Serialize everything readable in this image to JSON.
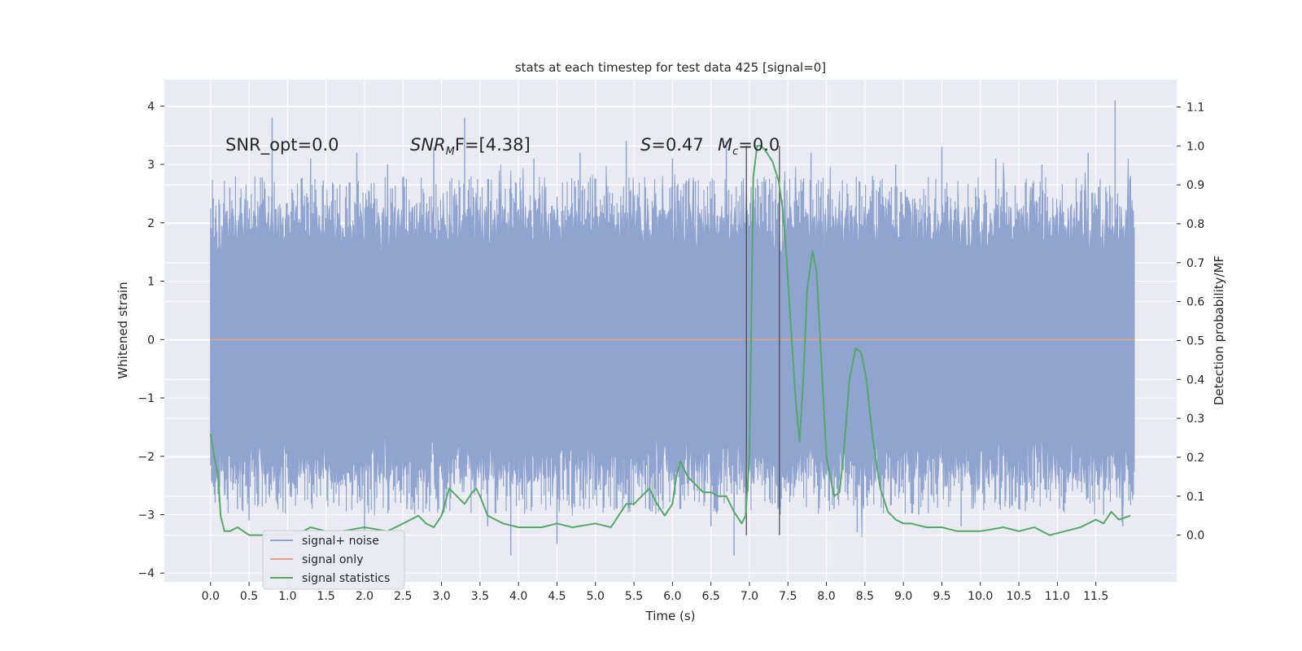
{
  "chart_data": {
    "type": "line",
    "title": "stats at each timestep for test data 425 [signal=0]",
    "xlabel": "Time (s)",
    "ylabel": "Whitened strain",
    "y2label": "Detection probability/MF",
    "xlim": [
      -0.6,
      12.55
    ],
    "ylim": [
      -4.15,
      4.45
    ],
    "y2lim": [
      -0.12,
      1.17
    ],
    "xticks": [
      "0.0",
      "0.5",
      "1.0",
      "1.5",
      "2.0",
      "2.5",
      "3.0",
      "3.5",
      "4.0",
      "4.5",
      "5.0",
      "5.5",
      "6.0",
      "6.5",
      "7.0",
      "7.5",
      "8.0",
      "8.5",
      "9.0",
      "9.5",
      "10.0",
      "10.5",
      "11.0",
      "11.5"
    ],
    "yticks": [
      "4",
      "3",
      "2",
      "1",
      "0",
      "−1",
      "−2",
      "−3",
      "−4"
    ],
    "y2ticks": [
      "1.1",
      "1.0",
      "0.9",
      "0.8",
      "0.7",
      "0.6",
      "0.5",
      "0.4",
      "0.3",
      "0.2",
      "0.1",
      "0.0"
    ],
    "grid": true,
    "legend_position": "lower-left",
    "annotations": {
      "snr_opt": "SNR_opt=0.0",
      "snr_mf_prefix": "SNR",
      "snr_mf_sub": "M",
      "snr_mf_rest": "F=[4.38]",
      "s_sym": "S",
      "s_val": "=0.47",
      "mc_sym": "M",
      "mc_sub": "c",
      "mc_val": "=0.0"
    },
    "vlines_x": [
      6.96,
      7.39
    ],
    "series": [
      {
        "name": "signal+ noise",
        "axis": "left",
        "color": "#8fa5cf",
        "x_range": [
          0.0,
          12.0
        ],
        "band_low": -1.6,
        "band_high": 1.4,
        "spike_peaks": [
          [
            0.1,
            -2.4
          ],
          [
            0.25,
            2.6
          ],
          [
            0.35,
            -2.9
          ],
          [
            0.5,
            -3.1
          ],
          [
            0.8,
            3.8
          ],
          [
            1.05,
            -2.7
          ],
          [
            1.3,
            3.1
          ],
          [
            1.6,
            -2.8
          ],
          [
            1.9,
            3.2
          ],
          [
            2.0,
            -3.4
          ],
          [
            2.3,
            3.0
          ],
          [
            2.55,
            -2.9
          ],
          [
            2.9,
            3.3
          ],
          [
            3.3,
            3.8
          ],
          [
            3.6,
            -3.2
          ],
          [
            3.9,
            -3.7
          ],
          [
            4.2,
            3.1
          ],
          [
            4.5,
            -3.5
          ],
          [
            4.8,
            3.2
          ],
          [
            5.1,
            -2.8
          ],
          [
            5.4,
            3.4
          ],
          [
            5.7,
            -2.9
          ],
          [
            6.0,
            3.1
          ],
          [
            6.5,
            -3.2
          ],
          [
            6.7,
            3.4
          ],
          [
            6.8,
            -3.7
          ],
          [
            7.4,
            -3.0
          ],
          [
            7.8,
            3.2
          ],
          [
            8.1,
            -2.9
          ],
          [
            8.4,
            -3.3
          ],
          [
            8.6,
            2.8
          ],
          [
            8.9,
            3.0
          ],
          [
            9.2,
            -3.0
          ],
          [
            9.5,
            3.3
          ],
          [
            9.75,
            -3.2
          ],
          [
            10.2,
            3.1
          ],
          [
            10.5,
            -2.9
          ],
          [
            10.8,
            3.0
          ],
          [
            11.1,
            -2.8
          ],
          [
            11.4,
            3.2
          ],
          [
            11.6,
            -3.0
          ],
          [
            11.75,
            4.1
          ],
          [
            11.85,
            -3.2
          ],
          [
            11.95,
            2.8
          ]
        ]
      },
      {
        "name": "signal only",
        "axis": "left",
        "color": "#e2a189",
        "x": [
          0.0,
          12.0
        ],
        "y": [
          0.0,
          0.0
        ]
      },
      {
        "name": "signal statistics",
        "axis": "right",
        "color": "#55a868",
        "x": [
          0.0,
          0.05,
          0.1,
          0.13,
          0.18,
          0.25,
          0.35,
          0.5,
          0.7,
          1.0,
          1.2,
          1.3,
          1.5,
          1.7,
          2.0,
          2.3,
          2.5,
          2.7,
          2.8,
          2.9,
          3.0,
          3.1,
          3.3,
          3.4,
          3.45,
          3.5,
          3.6,
          3.8,
          4.0,
          4.3,
          4.5,
          4.7,
          5.0,
          5.2,
          5.4,
          5.5,
          5.6,
          5.7,
          5.8,
          5.9,
          6.0,
          6.05,
          6.1,
          6.2,
          6.4,
          6.5,
          6.6,
          6.7,
          6.8,
          6.9,
          6.95,
          7.0,
          7.05,
          7.1,
          7.15,
          7.2,
          7.3,
          7.38,
          7.43,
          7.48,
          7.55,
          7.6,
          7.65,
          7.7,
          7.75,
          7.82,
          7.87,
          7.92,
          8.0,
          8.1,
          8.17,
          8.22,
          8.3,
          8.38,
          8.45,
          8.52,
          8.6,
          8.7,
          8.8,
          8.9,
          9.0,
          9.1,
          9.3,
          9.5,
          9.7,
          10.0,
          10.3,
          10.5,
          10.7,
          10.9,
          11.1,
          11.3,
          11.5,
          11.6,
          11.7,
          11.8,
          11.95
        ],
        "y": [
          0.26,
          0.2,
          0.15,
          0.05,
          0.01,
          0.01,
          0.02,
          0.0,
          0.0,
          0.0,
          0.01,
          0.02,
          0.01,
          0.01,
          0.02,
          0.01,
          0.03,
          0.05,
          0.03,
          0.02,
          0.05,
          0.12,
          0.08,
          0.11,
          0.12,
          0.1,
          0.05,
          0.03,
          0.02,
          0.02,
          0.03,
          0.02,
          0.03,
          0.02,
          0.08,
          0.08,
          0.1,
          0.12,
          0.08,
          0.05,
          0.08,
          0.15,
          0.19,
          0.15,
          0.11,
          0.11,
          0.1,
          0.1,
          0.06,
          0.03,
          0.05,
          0.2,
          0.92,
          1.0,
          1.0,
          0.99,
          0.96,
          0.91,
          0.84,
          0.72,
          0.5,
          0.35,
          0.24,
          0.4,
          0.63,
          0.73,
          0.68,
          0.5,
          0.2,
          0.1,
          0.11,
          0.2,
          0.4,
          0.48,
          0.47,
          0.4,
          0.25,
          0.12,
          0.06,
          0.04,
          0.03,
          0.03,
          0.02,
          0.02,
          0.01,
          0.01,
          0.02,
          0.01,
          0.02,
          0.0,
          0.01,
          0.02,
          0.04,
          0.03,
          0.06,
          0.04,
          0.05
        ]
      }
    ]
  }
}
